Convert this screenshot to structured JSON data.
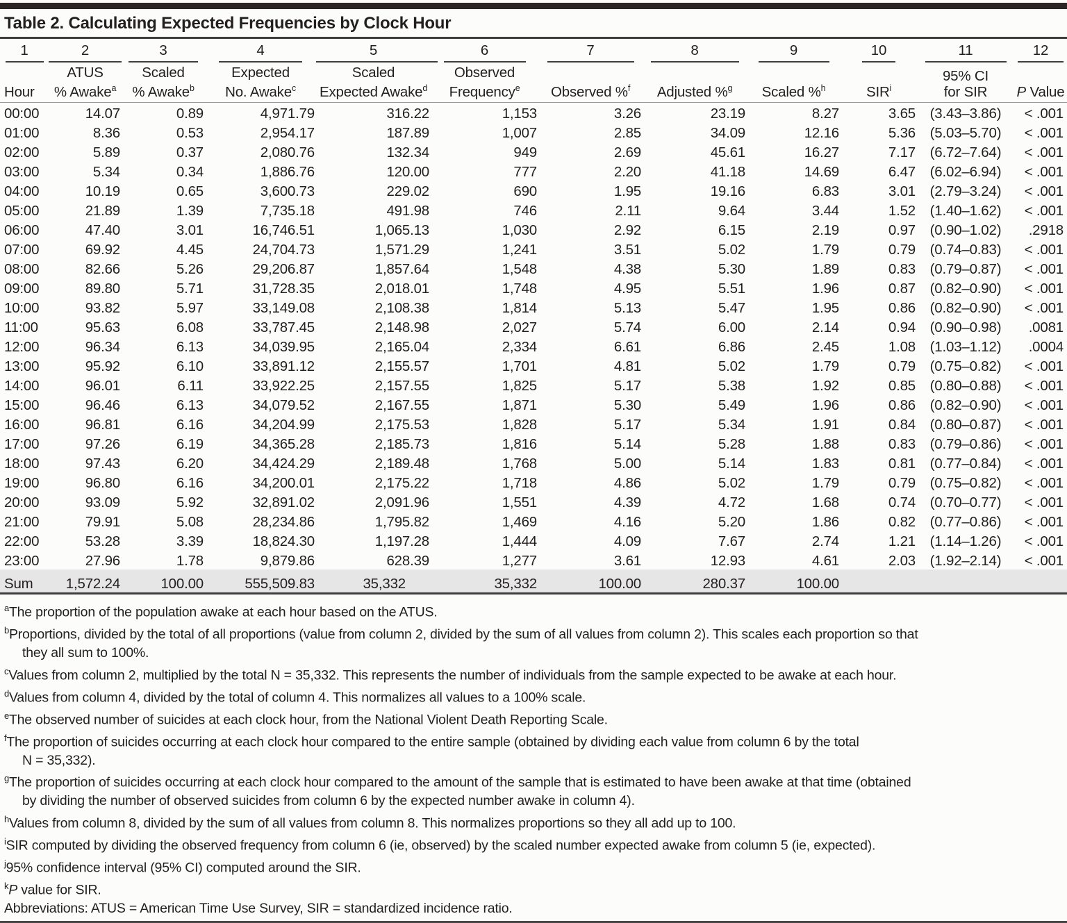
{
  "title": "Table 2. Calculating Expected Frequencies by Clock Hour",
  "colors": {
    "text": "#231f20",
    "top_bar": "#2a2627",
    "rule_dark": "#413d3e",
    "rule_light": "#9a9a9a",
    "sum_row_background": "#e6e6e6",
    "page_background": "#fcfdfb"
  },
  "table": {
    "columns": [
      {
        "num": "1",
        "lines": [
          "Hour"
        ],
        "sup": ""
      },
      {
        "num": "2",
        "lines": [
          "ATUS",
          "% Awake"
        ],
        "sup": "a"
      },
      {
        "num": "3",
        "lines": [
          "Scaled",
          "% Awake"
        ],
        "sup": "b"
      },
      {
        "num": "4",
        "lines": [
          "Expected",
          "No. Awake"
        ],
        "sup": "c"
      },
      {
        "num": "5",
        "lines": [
          "Scaled",
          "Expected Awake"
        ],
        "sup": "d"
      },
      {
        "num": "6",
        "lines": [
          "Observed",
          "Frequency"
        ],
        "sup": "e"
      },
      {
        "num": "7",
        "lines": [
          "Observed %"
        ],
        "sup": "f"
      },
      {
        "num": "8",
        "lines": [
          "Adjusted %"
        ],
        "sup": "g"
      },
      {
        "num": "9",
        "lines": [
          "Scaled %"
        ],
        "sup": "h"
      },
      {
        "num": "10",
        "lines": [
          "SIR"
        ],
        "sup": "i"
      },
      {
        "num": "11",
        "lines": [
          "95% CI",
          "for SIR"
        ],
        "sup": ""
      },
      {
        "num": "12",
        "lines": [
          " Value"
        ],
        "italic_lead": "P",
        "sup": ""
      }
    ],
    "rows": [
      [
        "00:00",
        "14.07",
        "0.89",
        "4,971.79",
        "316.22",
        "1,153",
        "3.26",
        "23.19",
        "8.27",
        "3.65",
        "(3.43–3.86)",
        "< .001"
      ],
      [
        "01:00",
        "8.36",
        "0.53",
        "2,954.17",
        "187.89",
        "1,007",
        "2.85",
        "34.09",
        "12.16",
        "5.36",
        "(5.03–5.70)",
        "< .001"
      ],
      [
        "02:00",
        "5.89",
        "0.37",
        "2,080.76",
        "132.34",
        "949",
        "2.69",
        "45.61",
        "16.27",
        "7.17",
        "(6.72–7.64)",
        "< .001"
      ],
      [
        "03:00",
        "5.34",
        "0.34",
        "1,886.76",
        "120.00",
        "777",
        "2.20",
        "41.18",
        "14.69",
        "6.47",
        "(6.02–6.94)",
        "< .001"
      ],
      [
        "04:00",
        "10.19",
        "0.65",
        "3,600.73",
        "229.02",
        "690",
        "1.95",
        "19.16",
        "6.83",
        "3.01",
        "(2.79–3.24)",
        "< .001"
      ],
      [
        "05:00",
        "21.89",
        "1.39",
        "7,735.18",
        "491.98",
        "746",
        "2.11",
        "9.64",
        "3.44",
        "1.52",
        "(1.40–1.62)",
        "< .001"
      ],
      [
        "06:00",
        "47.40",
        "3.01",
        "16,746.51",
        "1,065.13",
        "1,030",
        "2.92",
        "6.15",
        "2.19",
        "0.97",
        "(0.90–1.02)",
        ".2918"
      ],
      [
        "07:00",
        "69.92",
        "4.45",
        "24,704.73",
        "1,571.29",
        "1,241",
        "3.51",
        "5.02",
        "1.79",
        "0.79",
        "(0.74–0.83)",
        "< .001"
      ],
      [
        "08:00",
        "82.66",
        "5.26",
        "29,206.87",
        "1,857.64",
        "1,548",
        "4.38",
        "5.30",
        "1.89",
        "0.83",
        "(0.79–0.87)",
        "< .001"
      ],
      [
        "09:00",
        "89.80",
        "5.71",
        "31,728.35",
        "2,018.01",
        "1,748",
        "4.95",
        "5.51",
        "1.96",
        "0.87",
        "(0.82–0.90)",
        "< .001"
      ],
      [
        "10:00",
        "93.82",
        "5.97",
        "33,149.08",
        "2,108.38",
        "1,814",
        "5.13",
        "5.47",
        "1.95",
        "0.86",
        "(0.82–0.90)",
        "< .001"
      ],
      [
        "11:00",
        "95.63",
        "6.08",
        "33,787.45",
        "2,148.98",
        "2,027",
        "5.74",
        "6.00",
        "2.14",
        "0.94",
        "(0.90–0.98)",
        ".0081"
      ],
      [
        "12:00",
        "96.34",
        "6.13",
        "34,039.95",
        "2,165.04",
        "2,334",
        "6.61",
        "6.86",
        "2.45",
        "1.08",
        "(1.03–1.12)",
        ".0004"
      ],
      [
        "13:00",
        "95.92",
        "6.10",
        "33,891.12",
        "2,155.57",
        "1,701",
        "4.81",
        "5.02",
        "1.79",
        "0.79",
        "(0.75–0.82)",
        "< .001"
      ],
      [
        "14:00",
        "96.01",
        "6.11",
        "33,922.25",
        "2,157.55",
        "1,825",
        "5.17",
        "5.38",
        "1.92",
        "0.85",
        "(0.80–0.88)",
        "< .001"
      ],
      [
        "15:00",
        "96.46",
        "6.13",
        "34,079.52",
        "2,167.55",
        "1,871",
        "5.30",
        "5.49",
        "1.96",
        "0.86",
        "(0.82–0.90)",
        "< .001"
      ],
      [
        "16:00",
        "96.81",
        "6.16",
        "34,204.99",
        "2,175.53",
        "1,828",
        "5.17",
        "5.34",
        "1.91",
        "0.84",
        "(0.80–0.87)",
        "< .001"
      ],
      [
        "17:00",
        "97.26",
        "6.19",
        "34,365.28",
        "2,185.73",
        "1,816",
        "5.14",
        "5.28",
        "1.88",
        "0.83",
        "(0.79–0.86)",
        "< .001"
      ],
      [
        "18:00",
        "97.43",
        "6.20",
        "34,424.29",
        "2,189.48",
        "1,768",
        "5.00",
        "5.14",
        "1.83",
        "0.81",
        "(0.77–0.84)",
        "< .001"
      ],
      [
        "19:00",
        "96.80",
        "6.16",
        "34,200.01",
        "2,175.22",
        "1,718",
        "4.86",
        "5.02",
        "1.79",
        "0.79",
        "(0.75–0.82)",
        "< .001"
      ],
      [
        "20:00",
        "93.09",
        "5.92",
        "32,891.02",
        "2,091.96",
        "1,551",
        "4.39",
        "4.72",
        "1.68",
        "0.74",
        "(0.70–0.77)",
        "< .001"
      ],
      [
        "21:00",
        "79.91",
        "5.08",
        "28,234.86",
        "1,795.82",
        "1,469",
        "4.16",
        "5.20",
        "1.86",
        "0.82",
        "(0.77–0.86)",
        "< .001"
      ],
      [
        "22:00",
        "53.28",
        "3.39",
        "18,824.30",
        "1,197.28",
        "1,444",
        "4.09",
        "7.67",
        "2.74",
        "1.21",
        "(1.14–1.26)",
        "< .001"
      ],
      [
        "23:00",
        "27.96",
        "1.78",
        "9,879.86",
        "628.39",
        "1,277",
        "3.61",
        "12.93",
        "4.61",
        "2.03",
        "(1.92–2.14)",
        "< .001"
      ]
    ],
    "sum_row": [
      "Sum",
      "1,572.24",
      "100.00",
      "555,509.83",
      "35,332",
      "35,332",
      "100.00",
      "280.37",
      "100.00",
      "",
      "",
      ""
    ]
  },
  "footnotes": [
    {
      "m": "a",
      "text": "The proportion of the population awake at each hour based on the ATUS."
    },
    {
      "m": "b",
      "text": "Proportions, divided by the total of all proportions (value from column 2, divided by the sum of all values from column 2). This scales each proportion so that\nthey all sum to 100%."
    },
    {
      "m": "c",
      "text": "Values from column 2, multiplied by the total N = 35,332. This represents the number of individuals from the sample expected to be awake at each hour."
    },
    {
      "m": "d",
      "text": "Values from column 4, divided by the total of column 4. This normalizes all values to a 100% scale."
    },
    {
      "m": "e",
      "text": "The observed number of suicides at each clock hour, from the National Violent Death Reporting Scale."
    },
    {
      "m": "f",
      "text": "The proportion of suicides occurring at each clock hour compared to the entire sample (obtained by dividing each value from column 6 by the total\nN = 35,332)."
    },
    {
      "m": "g",
      "text": "The proportion of suicides occurring at each clock hour compared to the amount of the sample that is estimated to have been awake at that time (obtained\nby dividing the number of observed suicides from column 6 by the expected number awake in column 4)."
    },
    {
      "m": "h",
      "text": "Values from column 8, divided by the sum of all values from column 8. This normalizes proportions so they all add up to 100."
    },
    {
      "m": "i",
      "text": "SIR computed by dividing the observed frequency from column 6 (ie, observed) by the scaled number expected awake from column 5 (ie, expected)."
    },
    {
      "m": "j",
      "text": "95% confidence interval (95% CI) computed around the SIR."
    },
    {
      "m": "k",
      "italic_lead": "P",
      "text": " value for SIR."
    },
    {
      "m": "",
      "text": "Abbreviations: ATUS = American Time Use Survey, SIR = standardized incidence ratio."
    }
  ]
}
